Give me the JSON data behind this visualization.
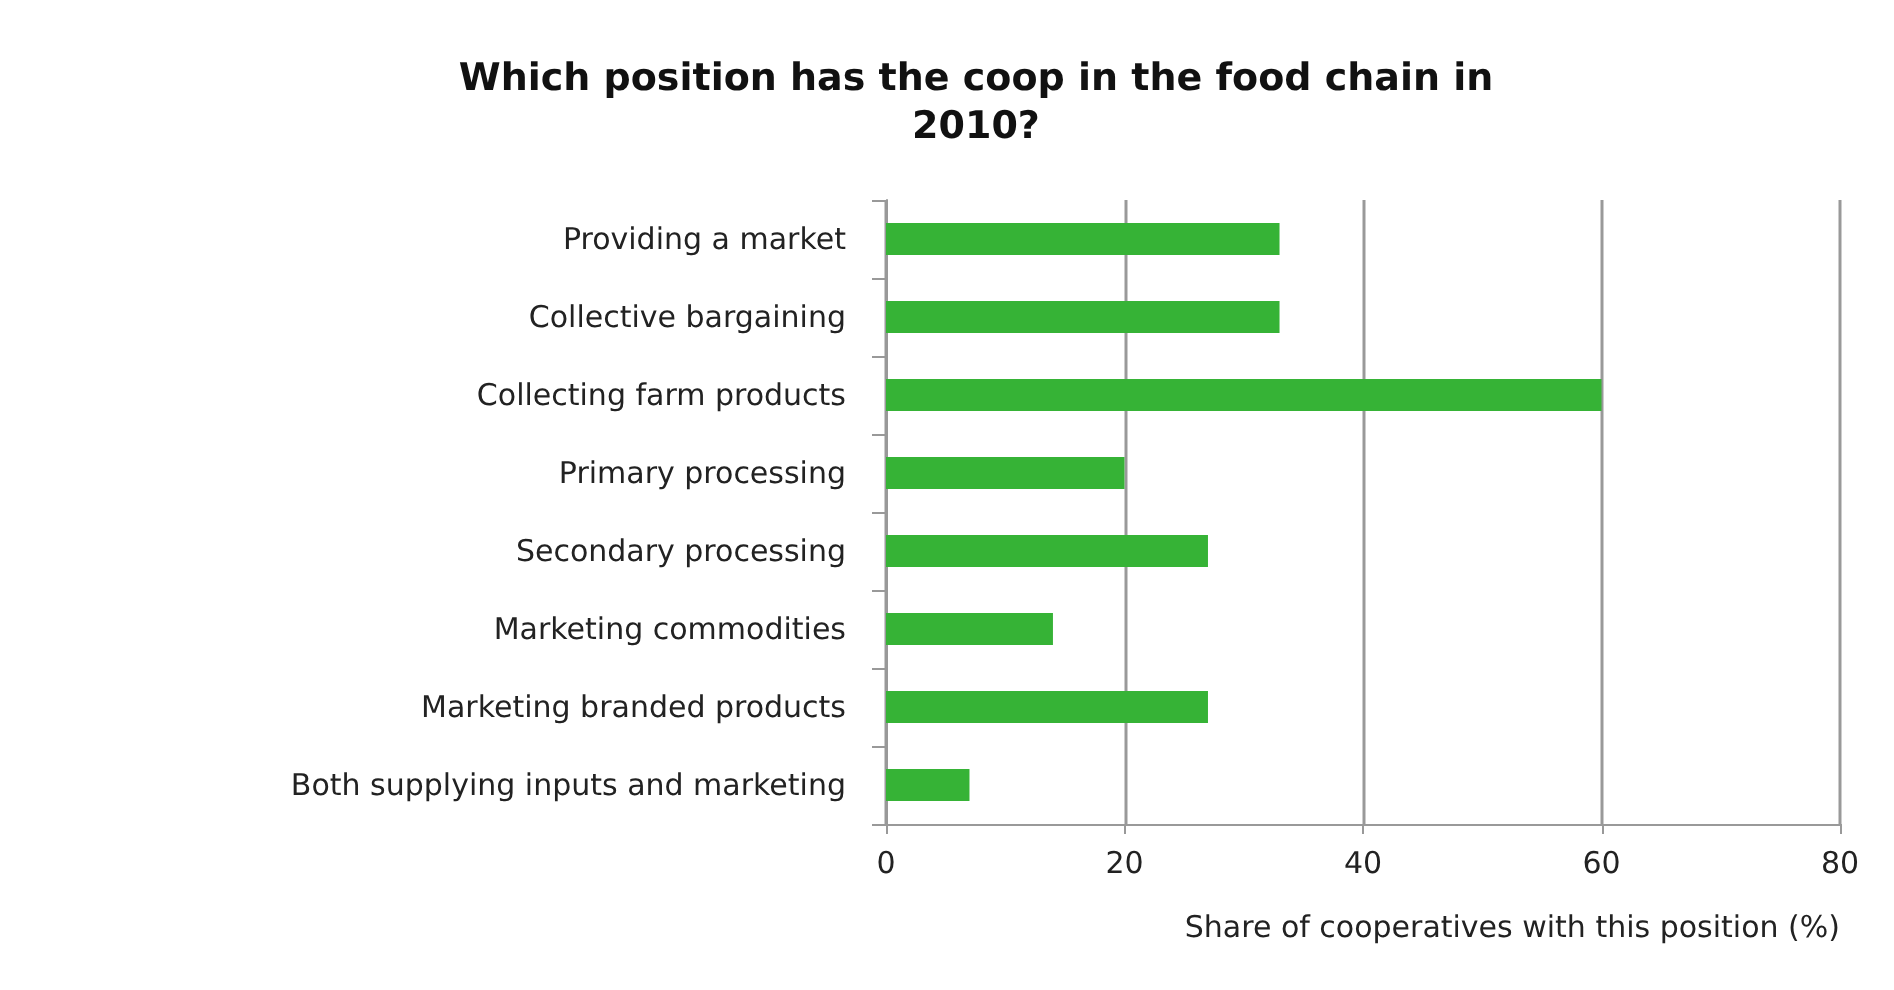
{
  "chart_data": {
    "type": "bar",
    "orientation": "horizontal",
    "title": "Which position has the coop in the food chain in\n2010?",
    "xlabel": "Share of cooperatives with this position (%)",
    "categories": [
      "Providing a market",
      "Collective bargaining",
      "Collecting farm products",
      "Primary processing",
      "Secondary processing",
      "Marketing commodities",
      "Marketing branded products",
      "Both supplying inputs and marketing"
    ],
    "values": [
      33,
      33,
      60,
      20,
      27,
      14,
      27,
      7
    ],
    "color": "#36b336",
    "xlim": [
      0,
      80
    ],
    "xticks": [
      0,
      20,
      40,
      60,
      80
    ],
    "grid": "x"
  }
}
